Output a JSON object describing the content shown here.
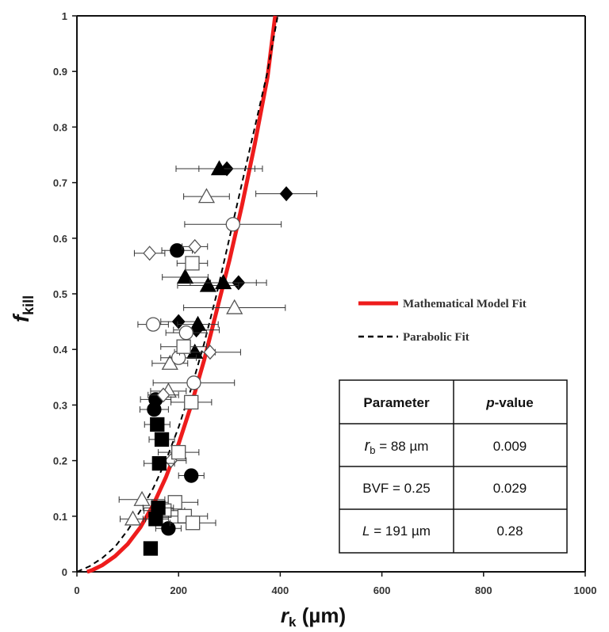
{
  "chart_data": {
    "type": "scatter",
    "xlabel_main": "r",
    "xlabel_sub": "k",
    "xlabel_unit": " (µm)",
    "ylabel_main": "f",
    "ylabel_sub": "kill",
    "xlim": [
      0,
      1000
    ],
    "ylim": [
      0,
      1
    ],
    "x_ticks": [
      "0",
      "200",
      "400",
      "600",
      "800",
      "1000"
    ],
    "y_ticks": [
      "0",
      "0.1",
      "0.2",
      "0.3",
      "0.4",
      "0.5",
      "0.6",
      "0.7",
      "0.8",
      "0.9",
      "1"
    ],
    "grid": false,
    "legend_position": "right",
    "legend": [
      {
        "label": "Mathematical Model Fit",
        "color": "#ee1c1c",
        "style": "solid"
      },
      {
        "label": "Parabolic Fit",
        "color": "#000000",
        "style": "dashed"
      }
    ],
    "curves": {
      "model_fit": {
        "x": [
          20,
          30,
          50,
          75,
          100,
          125,
          150,
          175,
          200,
          225,
          250,
          275,
          300,
          325,
          350,
          375,
          390
        ],
        "y": [
          0,
          0.003,
          0.012,
          0.028,
          0.05,
          0.08,
          0.12,
          0.17,
          0.23,
          0.3,
          0.38,
          0.47,
          0.56,
          0.66,
          0.77,
          0.89,
          1.0
        ]
      },
      "parabolic_fit": {
        "x": [
          0,
          25,
          50,
          75,
          100,
          125,
          150,
          175,
          200,
          225,
          250,
          275,
          300,
          325,
          350,
          375,
          395
        ],
        "y": [
          0,
          0.01,
          0.025,
          0.045,
          0.075,
          0.11,
          0.15,
          0.2,
          0.26,
          0.33,
          0.41,
          0.5,
          0.6,
          0.7,
          0.8,
          0.9,
          1.0
        ]
      }
    },
    "points": [
      {
        "marker": "filled-diamond",
        "x": 295,
        "y": 0.725,
        "xerr": 55
      },
      {
        "marker": "filled-diamond",
        "x": 412,
        "y": 0.68,
        "xerr": 60
      },
      {
        "marker": "filled-diamond",
        "x": 318,
        "y": 0.52,
        "xerr": 55
      },
      {
        "marker": "filled-diamond",
        "x": 235,
        "y": 0.435,
        "xerr": 45
      },
      {
        "marker": "filled-diamond",
        "x": 200,
        "y": 0.45,
        "xerr": 35
      },
      {
        "marker": "filled-triangle",
        "x": 280,
        "y": 0.725,
        "xerr": 85
      },
      {
        "marker": "filled-triangle",
        "x": 213,
        "y": 0.53,
        "xerr": 45
      },
      {
        "marker": "filled-triangle",
        "x": 258,
        "y": 0.515,
        "xerr": 60
      },
      {
        "marker": "filled-triangle",
        "x": 288,
        "y": 0.52,
        "xerr": 65
      },
      {
        "marker": "filled-triangle",
        "x": 238,
        "y": 0.445,
        "xerr": 40
      },
      {
        "marker": "filled-triangle",
        "x": 232,
        "y": 0.395,
        "xerr": 40
      },
      {
        "marker": "open-triangle",
        "x": 255,
        "y": 0.675,
        "xerr": 45
      },
      {
        "marker": "open-triangle",
        "x": 310,
        "y": 0.475,
        "xerr": 100
      },
      {
        "marker": "open-triangle",
        "x": 183,
        "y": 0.375,
        "xerr": 35
      },
      {
        "marker": "open-triangle",
        "x": 180,
        "y": 0.325,
        "xerr": 35
      },
      {
        "marker": "open-triangle",
        "x": 128,
        "y": 0.13,
        "xerr": 45
      },
      {
        "marker": "open-triangle",
        "x": 110,
        "y": 0.095,
        "xerr": 25
      },
      {
        "marker": "open-circle",
        "x": 307,
        "y": 0.625,
        "xerr": 95
      },
      {
        "marker": "open-circle",
        "x": 150,
        "y": 0.445,
        "xerr": 30
      },
      {
        "marker": "open-circle",
        "x": 215,
        "y": 0.43,
        "xerr": 40
      },
      {
        "marker": "open-circle",
        "x": 200,
        "y": 0.385,
        "xerr": 35
      },
      {
        "marker": "open-circle",
        "x": 230,
        "y": 0.34,
        "xerr": 80
      },
      {
        "marker": "filled-circle",
        "x": 197,
        "y": 0.578,
        "xerr": 30
      },
      {
        "marker": "filled-circle",
        "x": 155,
        "y": 0.31,
        "xerr": 30
      },
      {
        "marker": "filled-circle",
        "x": 152,
        "y": 0.292,
        "xerr": 28
      },
      {
        "marker": "filled-circle",
        "x": 225,
        "y": 0.173,
        "xerr": 25
      },
      {
        "marker": "filled-circle",
        "x": 180,
        "y": 0.078,
        "xerr": 25
      },
      {
        "marker": "open-diamond",
        "x": 143,
        "y": 0.573,
        "xerr": 30
      },
      {
        "marker": "open-diamond",
        "x": 232,
        "y": 0.585,
        "xerr": 25
      },
      {
        "marker": "open-diamond",
        "x": 262,
        "y": 0.395,
        "xerr": 60
      },
      {
        "marker": "open-diamond",
        "x": 170,
        "y": 0.318,
        "xerr": 30
      },
      {
        "marker": "open-diamond",
        "x": 185,
        "y": 0.2,
        "xerr": 30
      },
      {
        "marker": "open-square",
        "x": 227,
        "y": 0.555,
        "xerr": 30
      },
      {
        "marker": "open-square",
        "x": 210,
        "y": 0.405,
        "xerr": 45
      },
      {
        "marker": "open-square",
        "x": 225,
        "y": 0.305,
        "xerr": 40
      },
      {
        "marker": "open-square",
        "x": 200,
        "y": 0.215,
        "xerr": 40
      },
      {
        "marker": "open-square",
        "x": 193,
        "y": 0.125,
        "xerr": 45
      },
      {
        "marker": "open-square",
        "x": 172,
        "y": 0.11,
        "xerr": 40
      },
      {
        "marker": "open-square",
        "x": 212,
        "y": 0.1,
        "xerr": 45
      },
      {
        "marker": "open-square",
        "x": 228,
        "y": 0.088,
        "xerr": 45
      },
      {
        "marker": "filled-square",
        "x": 158,
        "y": 0.265,
        "xerr": 25
      },
      {
        "marker": "filled-square",
        "x": 167,
        "y": 0.238,
        "xerr": 25
      },
      {
        "marker": "filled-square",
        "x": 162,
        "y": 0.195,
        "xerr": 30
      },
      {
        "marker": "filled-square",
        "x": 160,
        "y": 0.115,
        "xerr": 30
      },
      {
        "marker": "filled-square",
        "x": 155,
        "y": 0.095,
        "xerr": 25
      },
      {
        "marker": "filled-square",
        "x": 145,
        "y": 0.042,
        "xerr": 10
      }
    ],
    "table": {
      "headers": {
        "param": "Parameter",
        "p_italic": "p",
        "p_rest": "-value"
      },
      "rows": [
        {
          "sym": "r",
          "sub": "b",
          "rest": " = 88 µm",
          "p": "0.009"
        },
        {
          "sym": "",
          "sub": "",
          "rest": "BVF = 0.25",
          "p": "0.029"
        },
        {
          "sym": "L",
          "sub": "",
          "rest": " = 191 µm",
          "p": "0.28"
        }
      ]
    }
  }
}
